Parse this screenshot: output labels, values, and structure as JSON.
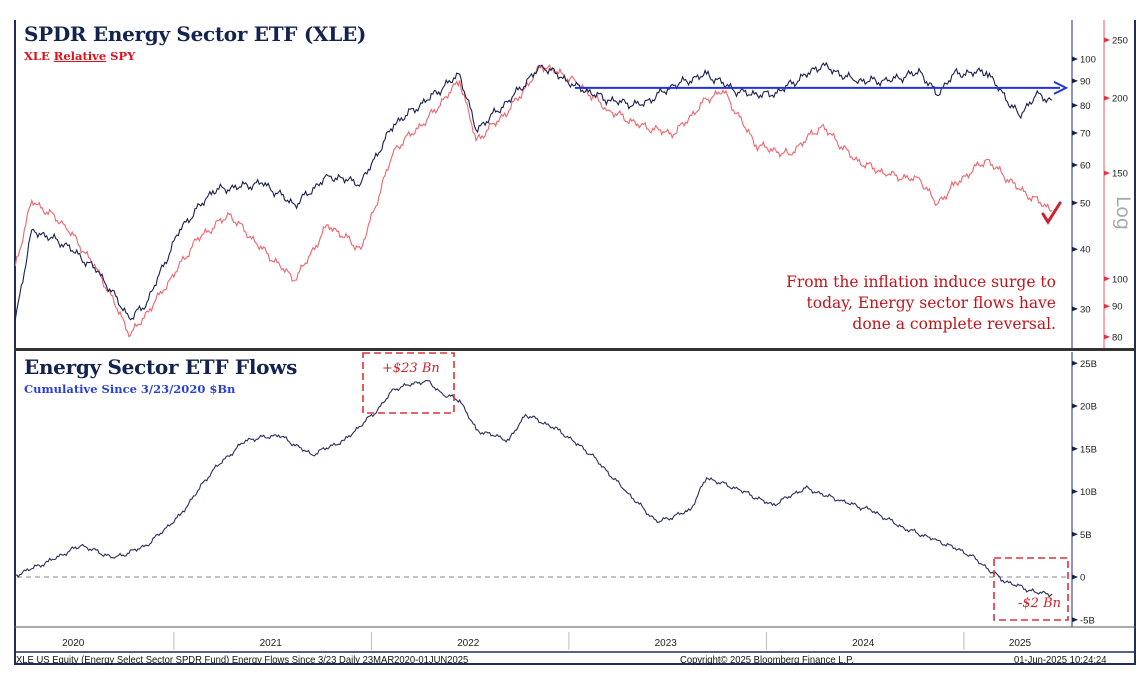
{
  "top_panel": {
    "title": "SPDR Energy Sector ETF (XLE)",
    "subtitle_parts": [
      "XLE ",
      "Relative",
      " SPY"
    ],
    "annotation_lines": [
      "From the inflation induce surge to",
      "today, Energy sector flows have",
      "done a complete reversal."
    ],
    "log_label": "Log"
  },
  "bottom_panel": {
    "title": "Energy Sector ETF Flows",
    "subtitle": "Cumulative Since 3/23/2020 $Bn",
    "peak_label": "+$23 Bn",
    "end_label": "-$2 Bn"
  },
  "footer": {
    "left": "XLE US Equity (Energy Select Sector SPDR Fund) Energy Flows Since 3/23  Daily 23MAR2020-01JUN2025",
    "center": "Copyright© 2025 Bloomberg Finance L.P.",
    "right": "01-Jun-2025 10:24:24"
  },
  "colors": {
    "xle": "#1a1f4f",
    "relative": "#f0646c",
    "flows": "#2a2f5c",
    "level_line": "#2233dd",
    "annotation": "#c0141c",
    "frame": "#1f2d5c"
  },
  "chart_data": [
    {
      "type": "line",
      "title": "SPDR Energy Sector ETF (XLE)",
      "x_tick_labels": [
        "2020",
        "2021",
        "2022",
        "2023",
        "2024",
        "2025"
      ],
      "left_axis": {
        "scale": "log",
        "ticks": [
          30,
          40,
          50,
          60,
          70,
          80,
          90,
          100
        ]
      },
      "right_axis": {
        "scale": "log",
        "ticks": [
          80,
          90,
          100,
          150,
          200,
          250
        ]
      },
      "series": [
        {
          "name": "XLE",
          "axis": "left",
          "points": [
            [
              "2020-03",
              28.5
            ],
            [
              "2020-04",
              43.9
            ],
            [
              "2020-06",
              41
            ],
            [
              "2020-08",
              36
            ],
            [
              "2020-10",
              28.5
            ],
            [
              "2020-11",
              31
            ],
            [
              "2021-01",
              44
            ],
            [
              "2021-03",
              53
            ],
            [
              "2021-06",
              55
            ],
            [
              "2021-08",
              49.5
            ],
            [
              "2021-10",
              57
            ],
            [
              "2021-12",
              55
            ],
            [
              "2022-02",
              73
            ],
            [
              "2022-04",
              82
            ],
            [
              "2022-06",
              93
            ],
            [
              "2022-07",
              71
            ],
            [
              "2022-09",
              82
            ],
            [
              "2022-11",
              97
            ],
            [
              "2023-01",
              88
            ],
            [
              "2023-03",
              82
            ],
            [
              "2023-05",
              80
            ],
            [
              "2023-07",
              88
            ],
            [
              "2023-09",
              93
            ],
            [
              "2023-11",
              85
            ],
            [
              "2024-01",
              84
            ],
            [
              "2024-04",
              97
            ],
            [
              "2024-06",
              90
            ],
            [
              "2024-08",
              90
            ],
            [
              "2024-10",
              94
            ],
            [
              "2024-11",
              84
            ],
            [
              "2024-12",
              93
            ],
            [
              "2025-02",
              94
            ],
            [
              "2025-04",
              76
            ],
            [
              "2025-05",
              84
            ],
            [
              "2025-06",
              82
            ]
          ]
        },
        {
          "name": "XLE Relative SPY",
          "axis": "right",
          "points": [
            [
              "2020-03",
              105
            ],
            [
              "2020-04",
              135
            ],
            [
              "2020-06",
              123
            ],
            [
              "2020-08",
              103.5
            ],
            [
              "2020-10",
              80.5
            ],
            [
              "2020-12",
              95.7
            ],
            [
              "2021-02",
              116
            ],
            [
              "2021-04",
              128
            ],
            [
              "2021-06",
              112
            ],
            [
              "2021-08",
              99.5
            ],
            [
              "2021-10",
              123
            ],
            [
              "2021-12",
              112
            ],
            [
              "2022-02",
              164
            ],
            [
              "2022-04",
              184
            ],
            [
              "2022-06",
              214
            ],
            [
              "2022-07",
              170
            ],
            [
              "2022-09",
              191
            ],
            [
              "2022-11",
              227
            ],
            [
              "2023-01",
              214
            ],
            [
              "2023-03",
              191
            ],
            [
              "2023-05",
              180
            ],
            [
              "2023-07",
              174
            ],
            [
              "2023-09",
              199
            ],
            [
              "2023-10",
              206
            ],
            [
              "2023-12",
              167
            ],
            [
              "2024-02",
              161
            ],
            [
              "2024-04",
              180
            ],
            [
              "2024-06",
              158
            ],
            [
              "2024-08",
              149
            ],
            [
              "2024-10",
              146
            ],
            [
              "2024-11",
              133
            ],
            [
              "2024-12",
              143
            ],
            [
              "2025-02",
              158
            ],
            [
              "2025-04",
              141
            ],
            [
              "2025-06",
              130
            ]
          ]
        }
      ],
      "reference_line": {
        "axis": "left",
        "value": 87,
        "from": "2023-01",
        "to": "2025-06",
        "arrow": true
      }
    },
    {
      "type": "line",
      "title": "Energy Sector ETF Flows",
      "subtitle": "Cumulative Since 3/23/2020 $Bn",
      "x_tick_labels": [
        "2020",
        "2021",
        "2022",
        "2023",
        "2024",
        "2025"
      ],
      "y_tick_labels": [
        "25B",
        "20B",
        "15B",
        "10B",
        "5B",
        "0",
        "-5B"
      ],
      "ylim": [
        -5,
        25
      ],
      "zero_line": "dashed",
      "series": [
        {
          "points": [
            [
              "2020-03",
              0.2
            ],
            [
              "2020-05",
              1.8
            ],
            [
              "2020-07",
              3.7
            ],
            [
              "2020-09",
              2.2
            ],
            [
              "2020-11",
              3.7
            ],
            [
              "2021-01",
              7.2
            ],
            [
              "2021-03",
              12.5
            ],
            [
              "2021-05",
              16
            ],
            [
              "2021-07",
              16.6
            ],
            [
              "2021-09",
              14.3
            ],
            [
              "2021-11",
              16
            ],
            [
              "2022-01",
              19.5
            ],
            [
              "2022-02",
              22
            ],
            [
              "2022-04",
              23
            ],
            [
              "2022-05",
              21.3
            ],
            [
              "2022-06",
              20.7
            ],
            [
              "2022-07",
              17.2
            ],
            [
              "2022-09",
              16
            ],
            [
              "2022-10",
              19
            ],
            [
              "2022-12",
              17.2
            ],
            [
              "2023-02",
              14.3
            ],
            [
              "2023-04",
              10.2
            ],
            [
              "2023-06",
              6.4
            ],
            [
              "2023-08",
              7.8
            ],
            [
              "2023-09",
              11.6
            ],
            [
              "2023-11",
              10.2
            ],
            [
              "2024-01",
              8.4
            ],
            [
              "2024-03",
              10.4
            ],
            [
              "2024-05",
              9
            ],
            [
              "2024-07",
              7.8
            ],
            [
              "2024-09",
              5.7
            ],
            [
              "2024-11",
              4.3
            ],
            [
              "2025-01",
              2.6
            ],
            [
              "2025-03",
              -0.4
            ],
            [
              "2025-05",
              -1.8
            ],
            [
              "2025-06",
              -2
            ]
          ]
        }
      ],
      "annotations": [
        "+$23 Bn",
        "-$2 Bn"
      ]
    }
  ]
}
